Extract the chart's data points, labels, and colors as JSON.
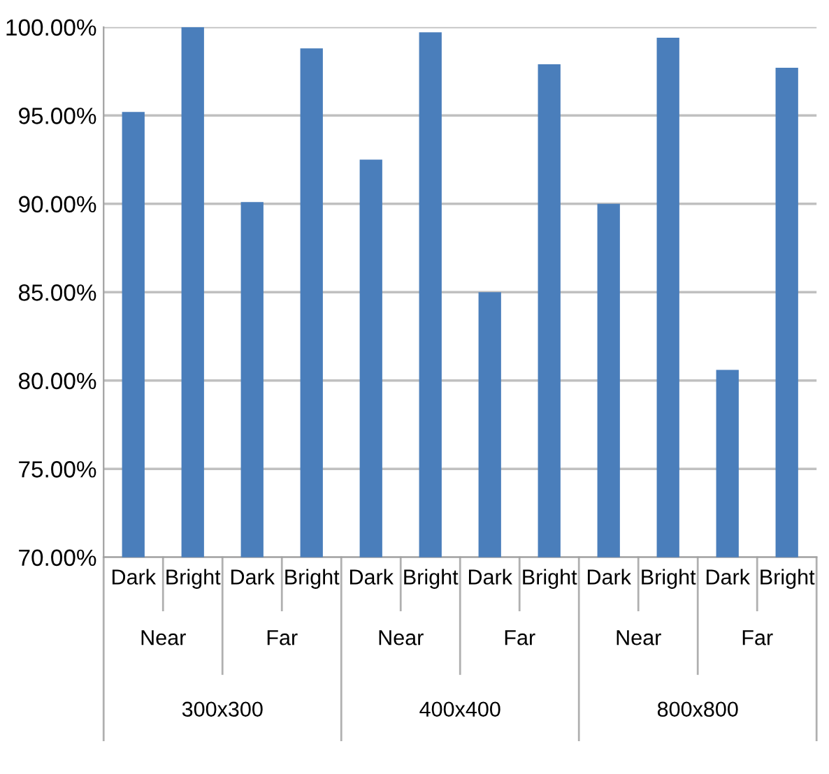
{
  "chart_data": {
    "type": "bar",
    "categories": [
      "Dark",
      "Bright",
      "Dark",
      "Bright",
      "Dark",
      "Bright",
      "Dark",
      "Bright",
      "Dark",
      "Bright",
      "Dark",
      "Bright"
    ],
    "values": [
      0.952,
      1.0,
      0.901,
      0.988,
      0.925,
      0.997,
      0.85,
      0.979,
      0.9,
      0.994,
      0.806,
      0.977
    ],
    "color": "#4a7ebb",
    "ylim": [
      0.7,
      1.0
    ],
    "yticks": [
      {
        "value": 0.7,
        "label": "70.00%"
      },
      {
        "value": 0.75,
        "label": "75.00%"
      },
      {
        "value": 0.8,
        "label": "80.00%"
      },
      {
        "value": 0.85,
        "label": "85.00%"
      },
      {
        "value": 0.9,
        "label": "90.00%"
      },
      {
        "value": 0.95,
        "label": "95.00%"
      },
      {
        "value": 1.0,
        "label": "100.00%"
      }
    ],
    "grid": "y",
    "annotations": [
      "Near",
      "Far",
      "Near",
      "Far",
      "Near",
      "Far",
      "300x300",
      "400x400",
      "800x800"
    ]
  }
}
